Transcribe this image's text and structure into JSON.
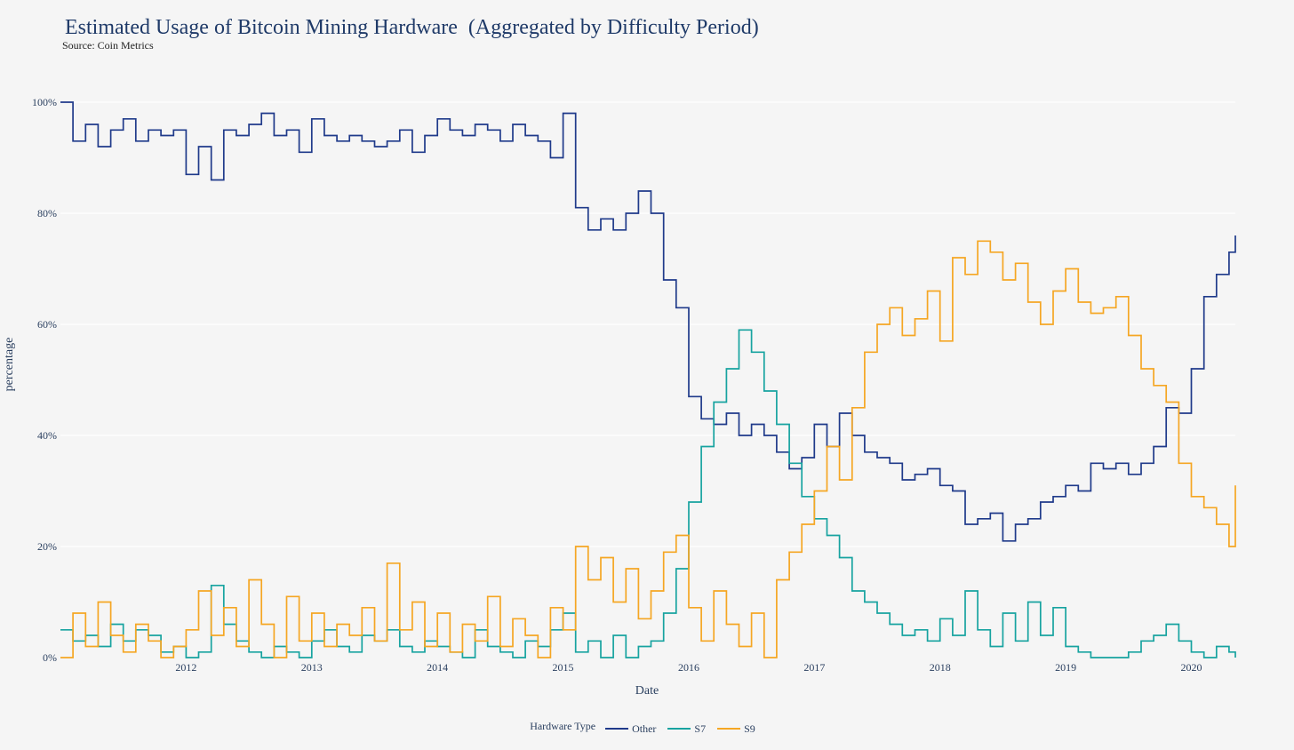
{
  "chart_data": {
    "type": "line",
    "title": "Estimated Usage of Bitcoin Mining Hardware  (Aggregated by Difficulty Period)",
    "subtitle": "Source: Coin Metrics",
    "xlabel": "Date",
    "ylabel": "percentage",
    "xlim": [
      2011.0,
      2020.35
    ],
    "ylim": [
      0,
      100
    ],
    "yticks": [
      {
        "value": 0,
        "label": "0%"
      },
      {
        "value": 20,
        "label": "20%"
      },
      {
        "value": 40,
        "label": "40%"
      },
      {
        "value": 60,
        "label": "60%"
      },
      {
        "value": 80,
        "label": "80%"
      },
      {
        "value": 100,
        "label": "100%"
      }
    ],
    "xticks": [
      {
        "value": 2012,
        "label": "2012"
      },
      {
        "value": 2013,
        "label": "2013"
      },
      {
        "value": 2014,
        "label": "2014"
      },
      {
        "value": 2015,
        "label": "2015"
      },
      {
        "value": 2016,
        "label": "2016"
      },
      {
        "value": 2017,
        "label": "2017"
      },
      {
        "value": 2018,
        "label": "2018"
      },
      {
        "value": 2019,
        "label": "2019"
      },
      {
        "value": 2020,
        "label": "2020"
      }
    ],
    "grid": true,
    "legend": {
      "title": "Hardware Type",
      "position": "bottom-center"
    },
    "series": [
      {
        "name": "Other",
        "color": "#1f3a8a",
        "x": [
          2011.0,
          2011.1,
          2011.2,
          2011.3,
          2011.4,
          2011.5,
          2011.6,
          2011.7,
          2011.8,
          2011.9,
          2012.0,
          2012.1,
          2012.2,
          2012.3,
          2012.4,
          2012.5,
          2012.6,
          2012.7,
          2012.8,
          2012.9,
          2013.0,
          2013.1,
          2013.2,
          2013.3,
          2013.4,
          2013.5,
          2013.6,
          2013.7,
          2013.8,
          2013.9,
          2014.0,
          2014.1,
          2014.2,
          2014.3,
          2014.4,
          2014.5,
          2014.6,
          2014.7,
          2014.8,
          2014.9,
          2015.0,
          2015.1,
          2015.2,
          2015.3,
          2015.4,
          2015.5,
          2015.6,
          2015.7,
          2015.8,
          2015.9,
          2016.0,
          2016.1,
          2016.2,
          2016.3,
          2016.4,
          2016.5,
          2016.6,
          2016.7,
          2016.8,
          2016.9,
          2017.0,
          2017.1,
          2017.2,
          2017.3,
          2017.4,
          2017.5,
          2017.6,
          2017.7,
          2017.8,
          2017.9,
          2018.0,
          2018.1,
          2018.2,
          2018.3,
          2018.4,
          2018.5,
          2018.6,
          2018.7,
          2018.8,
          2018.9,
          2019.0,
          2019.1,
          2019.2,
          2019.3,
          2019.4,
          2019.5,
          2019.6,
          2019.7,
          2019.8,
          2019.9,
          2020.0,
          2020.1,
          2020.2,
          2020.3,
          2020.35
        ],
        "values": [
          100,
          93,
          96,
          92,
          95,
          97,
          93,
          95,
          94,
          95,
          87,
          92,
          86,
          95,
          94,
          96,
          98,
          94,
          95,
          91,
          97,
          94,
          93,
          94,
          93,
          92,
          93,
          95,
          91,
          94,
          97,
          95,
          94,
          96,
          95,
          93,
          96,
          94,
          93,
          90,
          98,
          81,
          77,
          79,
          77,
          80,
          84,
          80,
          68,
          63,
          47,
          43,
          42,
          44,
          40,
          42,
          40,
          37,
          34,
          36,
          42,
          38,
          44,
          40,
          37,
          36,
          35,
          32,
          33,
          34,
          31,
          30,
          24,
          25,
          26,
          21,
          24,
          25,
          28,
          29,
          31,
          30,
          35,
          34,
          35,
          33,
          35,
          38,
          45,
          44,
          52,
          65,
          69,
          73,
          76
        ]
      },
      {
        "name": "S7",
        "color": "#17a3a0",
        "x": [
          2011.0,
          2011.1,
          2011.2,
          2011.3,
          2011.4,
          2011.5,
          2011.6,
          2011.7,
          2011.8,
          2011.9,
          2012.0,
          2012.1,
          2012.2,
          2012.3,
          2012.4,
          2012.5,
          2012.6,
          2012.7,
          2012.8,
          2012.9,
          2013.0,
          2013.1,
          2013.2,
          2013.3,
          2013.4,
          2013.5,
          2013.6,
          2013.7,
          2013.8,
          2013.9,
          2014.0,
          2014.1,
          2014.2,
          2014.3,
          2014.4,
          2014.5,
          2014.6,
          2014.7,
          2014.8,
          2014.9,
          2015.0,
          2015.1,
          2015.2,
          2015.3,
          2015.4,
          2015.5,
          2015.6,
          2015.7,
          2015.8,
          2015.9,
          2016.0,
          2016.1,
          2016.2,
          2016.3,
          2016.4,
          2016.5,
          2016.6,
          2016.7,
          2016.8,
          2016.9,
          2017.0,
          2017.1,
          2017.2,
          2017.3,
          2017.4,
          2017.5,
          2017.6,
          2017.7,
          2017.8,
          2017.9,
          2018.0,
          2018.1,
          2018.2,
          2018.3,
          2018.4,
          2018.5,
          2018.6,
          2018.7,
          2018.8,
          2018.9,
          2019.0,
          2019.1,
          2019.2,
          2019.3,
          2019.4,
          2019.5,
          2019.6,
          2019.7,
          2019.8,
          2019.9,
          2020.0,
          2020.1,
          2020.2,
          2020.3,
          2020.35
        ],
        "values": [
          5,
          3,
          4,
          2,
          6,
          3,
          5,
          4,
          1,
          2,
          0,
          1,
          13,
          6,
          3,
          1,
          0,
          2,
          1,
          0,
          3,
          5,
          2,
          1,
          4,
          3,
          5,
          2,
          1,
          3,
          2,
          1,
          0,
          5,
          2,
          1,
          0,
          3,
          2,
          5,
          8,
          1,
          3,
          0,
          4,
          0,
          2,
          3,
          8,
          16,
          28,
          38,
          46,
          52,
          59,
          55,
          48,
          42,
          35,
          29,
          25,
          22,
          18,
          12,
          10,
          8,
          6,
          4,
          5,
          3,
          7,
          4,
          12,
          5,
          2,
          8,
          3,
          10,
          4,
          9,
          2,
          1,
          0,
          0,
          0,
          1,
          3,
          4,
          6,
          3,
          1,
          0,
          2,
          1,
          0
        ]
      },
      {
        "name": "S9",
        "color": "#f5a623",
        "x": [
          2011.0,
          2011.1,
          2011.2,
          2011.3,
          2011.4,
          2011.5,
          2011.6,
          2011.7,
          2011.8,
          2011.9,
          2012.0,
          2012.1,
          2012.2,
          2012.3,
          2012.4,
          2012.5,
          2012.6,
          2012.7,
          2012.8,
          2012.9,
          2013.0,
          2013.1,
          2013.2,
          2013.3,
          2013.4,
          2013.5,
          2013.6,
          2013.7,
          2013.8,
          2013.9,
          2014.0,
          2014.1,
          2014.2,
          2014.3,
          2014.4,
          2014.5,
          2014.6,
          2014.7,
          2014.8,
          2014.9,
          2015.0,
          2015.1,
          2015.2,
          2015.3,
          2015.4,
          2015.5,
          2015.6,
          2015.7,
          2015.8,
          2015.9,
          2016.0,
          2016.1,
          2016.2,
          2016.3,
          2016.4,
          2016.5,
          2016.6,
          2016.7,
          2016.8,
          2016.9,
          2017.0,
          2017.1,
          2017.2,
          2017.3,
          2017.4,
          2017.5,
          2017.6,
          2017.7,
          2017.8,
          2017.9,
          2018.0,
          2018.1,
          2018.2,
          2018.3,
          2018.4,
          2018.5,
          2018.6,
          2018.7,
          2018.8,
          2018.9,
          2019.0,
          2019.1,
          2019.2,
          2019.3,
          2019.4,
          2019.5,
          2019.6,
          2019.7,
          2019.8,
          2019.9,
          2020.0,
          2020.1,
          2020.2,
          2020.3,
          2020.35
        ],
        "values": [
          0,
          8,
          2,
          10,
          4,
          1,
          6,
          3,
          0,
          2,
          5,
          12,
          4,
          9,
          2,
          14,
          6,
          0,
          11,
          3,
          8,
          2,
          6,
          4,
          9,
          3,
          17,
          5,
          10,
          2,
          8,
          1,
          6,
          3,
          11,
          2,
          7,
          4,
          0,
          9,
          5,
          20,
          14,
          18,
          10,
          16,
          7,
          12,
          19,
          22,
          9,
          3,
          12,
          6,
          2,
          8,
          0,
          14,
          19,
          24,
          30,
          38,
          32,
          45,
          55,
          60,
          63,
          58,
          61,
          66,
          57,
          72,
          69,
          75,
          73,
          68,
          71,
          64,
          60,
          66,
          70,
          64,
          62,
          63,
          65,
          58,
          52,
          49,
          46,
          35,
          29,
          27,
          24,
          20,
          31
        ]
      }
    ]
  }
}
